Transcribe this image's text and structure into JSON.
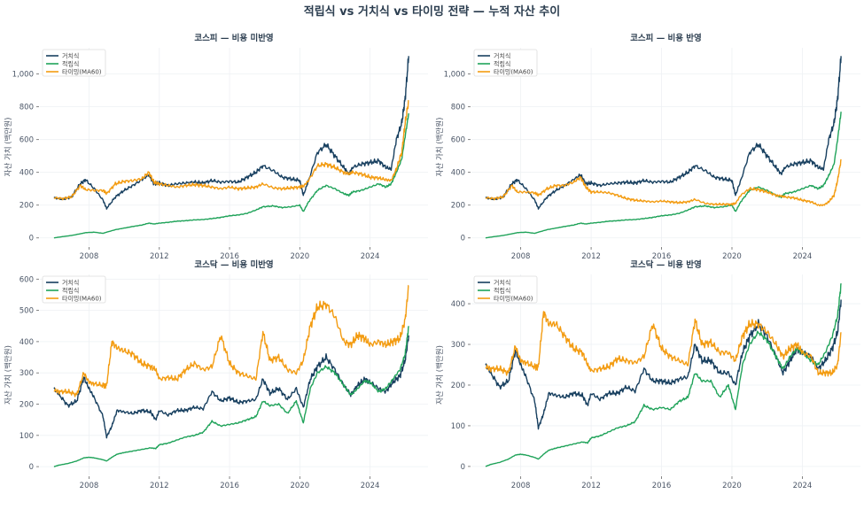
{
  "suptitle": "적립식 vs 거치식 vs 타이밍 전략 — 누적 자산 추이",
  "colors": {
    "lump": "#173f5f",
    "dca": "#20a35a",
    "timing": "#f39c12"
  },
  "chart_data": [
    {
      "type": "line",
      "title": "코스피 — 비용 미반영",
      "xlabel": "",
      "ylabel": "자산 가치 (백만원)",
      "xlim": [
        2005.2,
        2027.3
      ],
      "ylim": [
        -50,
        1160
      ],
      "xticks": [
        2008,
        2012,
        2016,
        2020,
        2024
      ],
      "yticks": [
        0,
        200,
        400,
        600,
        800,
        1000
      ],
      "ytick_labels": [
        "0",
        "200",
        "400",
        "600",
        "800",
        "1,000"
      ],
      "legend": [
        "거치식",
        "적립식",
        "타이밍(MA60)"
      ],
      "legend_position": "top-left",
      "grid": true,
      "x": [
        2006.0,
        2006.5,
        2007.0,
        2007.5,
        2007.8,
        2008.3,
        2008.8,
        2009.0,
        2009.5,
        2010.0,
        2010.5,
        2011.0,
        2011.4,
        2011.7,
        2012.0,
        2012.5,
        2013.0,
        2013.5,
        2014.0,
        2014.5,
        2015.0,
        2015.5,
        2016.0,
        2016.5,
        2017.0,
        2017.5,
        2017.9,
        2018.5,
        2019.0,
        2019.5,
        2020.0,
        2020.2,
        2020.5,
        2021.0,
        2021.5,
        2022.0,
        2022.5,
        2022.8,
        2023.0,
        2023.5,
        2024.0,
        2024.5,
        2024.9,
        2025.2,
        2025.5,
        2025.8,
        2026.0,
        2026.2
      ],
      "series": [
        {
          "name": "거치식",
          "values": [
            245,
            235,
            250,
            330,
            355,
            300,
            230,
            180,
            250,
            290,
            320,
            355,
            385,
            330,
            335,
            320,
            330,
            335,
            340,
            335,
            350,
            340,
            345,
            340,
            370,
            400,
            440,
            410,
            370,
            360,
            350,
            260,
            350,
            520,
            570,
            500,
            430,
            390,
            430,
            450,
            460,
            470,
            430,
            420,
            600,
            700,
            850,
            1110
          ]
        },
        {
          "name": "적립식",
          "values": [
            0,
            8,
            15,
            25,
            32,
            35,
            28,
            35,
            50,
            60,
            70,
            78,
            90,
            85,
            90,
            95,
            102,
            105,
            110,
            112,
            118,
            125,
            135,
            140,
            150,
            170,
            190,
            195,
            185,
            190,
            200,
            160,
            220,
            290,
            320,
            300,
            270,
            260,
            280,
            290,
            310,
            330,
            310,
            330,
            400,
            480,
            620,
            760
          ]
        },
        {
          "name": "타이밍(MA60)",
          "values": [
            245,
            240,
            250,
            320,
            295,
            290,
            290,
            270,
            330,
            345,
            350,
            360,
            400,
            340,
            330,
            320,
            310,
            320,
            325,
            320,
            310,
            300,
            310,
            300,
            305,
            310,
            330,
            305,
            300,
            305,
            310,
            315,
            350,
            440,
            450,
            430,
            400,
            390,
            400,
            390,
            370,
            365,
            355,
            350,
            420,
            520,
            700,
            840
          ]
        }
      ]
    },
    {
      "type": "line",
      "title": "코스피 — 비용 반영",
      "xlabel": "",
      "ylabel": "자산 가치 (백만원)",
      "xlim": [
        2005.2,
        2027.3
      ],
      "ylim": [
        -50,
        1160
      ],
      "xticks": [
        2008,
        2012,
        2016,
        2020,
        2024
      ],
      "yticks": [
        0,
        200,
        400,
        600,
        800,
        1000
      ],
      "ytick_labels": [
        "0",
        "200",
        "400",
        "600",
        "800",
        "1,000"
      ],
      "legend": [
        "거치식",
        "적립식",
        "타이밍(MA60)"
      ],
      "legend_position": "top-left",
      "grid": true,
      "x": [
        2006.0,
        2006.5,
        2007.0,
        2007.5,
        2007.8,
        2008.3,
        2008.8,
        2009.0,
        2009.5,
        2010.0,
        2010.5,
        2011.0,
        2011.4,
        2011.7,
        2012.0,
        2012.5,
        2013.0,
        2013.5,
        2014.0,
        2014.5,
        2015.0,
        2015.5,
        2016.0,
        2016.5,
        2017.0,
        2017.5,
        2017.9,
        2018.5,
        2019.0,
        2019.5,
        2020.0,
        2020.2,
        2020.5,
        2021.0,
        2021.5,
        2022.0,
        2022.5,
        2022.8,
        2023.0,
        2023.5,
        2024.0,
        2024.5,
        2024.9,
        2025.2,
        2025.5,
        2025.8,
        2026.0,
        2026.2
      ],
      "series": [
        {
          "name": "거치식",
          "values": [
            245,
            235,
            250,
            330,
            355,
            300,
            230,
            180,
            250,
            290,
            320,
            355,
            385,
            330,
            335,
            320,
            330,
            335,
            340,
            335,
            350,
            340,
            345,
            340,
            370,
            400,
            440,
            410,
            370,
            360,
            350,
            260,
            350,
            520,
            570,
            500,
            430,
            390,
            430,
            450,
            460,
            470,
            430,
            420,
            600,
            700,
            850,
            1110
          ]
        },
        {
          "name": "적립식",
          "values": [
            0,
            8,
            15,
            25,
            32,
            35,
            28,
            35,
            50,
            60,
            70,
            78,
            90,
            85,
            90,
            95,
            102,
            105,
            110,
            112,
            118,
            125,
            135,
            140,
            150,
            170,
            190,
            195,
            185,
            190,
            200,
            160,
            220,
            290,
            310,
            290,
            260,
            250,
            270,
            280,
            300,
            320,
            300,
            320,
            380,
            450,
            600,
            770
          ]
        },
        {
          "name": "타이밍(MA60)",
          "values": [
            245,
            240,
            250,
            320,
            280,
            280,
            275,
            260,
            300,
            320,
            320,
            340,
            370,
            310,
            280,
            280,
            275,
            260,
            240,
            230,
            225,
            220,
            225,
            220,
            215,
            220,
            235,
            210,
            205,
            205,
            205,
            210,
            260,
            300,
            295,
            280,
            260,
            255,
            250,
            245,
            230,
            220,
            200,
            200,
            220,
            260,
            350,
            480
          ]
        }
      ]
    },
    {
      "type": "line",
      "title": "코스닥 — 비용 미반영",
      "xlabel": "",
      "ylabel": "자산 가치 (백만원)",
      "xlim": [
        2005.2,
        2027.3
      ],
      "ylim": [
        -28,
        615
      ],
      "xticks": [
        2008,
        2012,
        2016,
        2020,
        2024
      ],
      "yticks": [
        0,
        100,
        200,
        300,
        400,
        500,
        600
      ],
      "ytick_labels": [
        "0",
        "100",
        "200",
        "300",
        "400",
        "500",
        "600"
      ],
      "legend": [
        "거치식",
        "적립식",
        "타이밍(MA60)"
      ],
      "legend_position": "top-left",
      "grid": true,
      "x": [
        2006.0,
        2006.3,
        2006.8,
        2007.3,
        2007.7,
        2008.0,
        2008.3,
        2008.8,
        2009.0,
        2009.3,
        2009.6,
        2010.0,
        2010.5,
        2011.0,
        2011.5,
        2011.8,
        2012.0,
        2012.5,
        2013.0,
        2013.5,
        2014.0,
        2014.5,
        2015.0,
        2015.5,
        2016.0,
        2016.5,
        2017.0,
        2017.5,
        2017.9,
        2018.3,
        2018.8,
        2019.3,
        2019.8,
        2020.2,
        2020.6,
        2021.0,
        2021.5,
        2022.0,
        2022.5,
        2022.9,
        2023.3,
        2023.7,
        2024.0,
        2024.5,
        2024.9,
        2025.3,
        2025.7,
        2026.0,
        2026.2
      ],
      "series": [
        {
          "name": "거치식",
          "values": [
            250,
            230,
            195,
            210,
            285,
            250,
            220,
            160,
            95,
            130,
            180,
            175,
            170,
            180,
            175,
            150,
            180,
            165,
            180,
            180,
            190,
            185,
            240,
            210,
            220,
            205,
            210,
            215,
            280,
            235,
            250,
            215,
            250,
            190,
            280,
            320,
            350,
            310,
            260,
            230,
            260,
            280,
            270,
            250,
            240,
            270,
            290,
            340,
            420
          ]
        },
        {
          "name": "적립식",
          "values": [
            0,
            5,
            10,
            18,
            28,
            30,
            28,
            22,
            18,
            30,
            40,
            45,
            50,
            55,
            60,
            58,
            70,
            75,
            85,
            95,
            100,
            110,
            145,
            130,
            135,
            140,
            150,
            160,
            210,
            195,
            200,
            170,
            210,
            140,
            250,
            300,
            320,
            300,
            260,
            230,
            250,
            275,
            270,
            240,
            250,
            280,
            310,
            360,
            450
          ]
        },
        {
          "name": "타이밍(MA60)",
          "values": [
            245,
            240,
            240,
            230,
            300,
            270,
            265,
            260,
            260,
            400,
            380,
            370,
            360,
            330,
            320,
            310,
            280,
            285,
            280,
            310,
            330,
            310,
            320,
            420,
            330,
            300,
            290,
            280,
            430,
            340,
            350,
            310,
            300,
            340,
            450,
            510,
            520,
            480,
            400,
            390,
            420,
            410,
            390,
            400,
            390,
            400,
            410,
            470,
            580
          ]
        }
      ]
    },
    {
      "type": "line",
      "title": "코스닥 — 비용 반영",
      "xlabel": "",
      "ylabel": "자산 가치 (백만원)",
      "xlim": [
        2005.2,
        2027.3
      ],
      "ylim": [
        -22,
        472
      ],
      "xticks": [
        2008,
        2012,
        2016,
        2020,
        2024
      ],
      "yticks": [
        0,
        100,
        200,
        300,
        400
      ],
      "ytick_labels": [
        "0",
        "100",
        "200",
        "300",
        "400"
      ],
      "legend": [
        "거치식",
        "적립식",
        "타이밍(MA60)"
      ],
      "legend_position": "top-left",
      "grid": true,
      "x": [
        2006.0,
        2006.3,
        2006.8,
        2007.3,
        2007.7,
        2008.0,
        2008.3,
        2008.8,
        2009.0,
        2009.3,
        2009.6,
        2010.0,
        2010.5,
        2011.0,
        2011.5,
        2011.8,
        2012.0,
        2012.5,
        2013.0,
        2013.5,
        2014.0,
        2014.5,
        2015.0,
        2015.5,
        2016.0,
        2016.5,
        2017.0,
        2017.5,
        2017.9,
        2018.3,
        2018.8,
        2019.3,
        2019.8,
        2020.2,
        2020.6,
        2021.0,
        2021.5,
        2022.0,
        2022.5,
        2022.9,
        2023.3,
        2023.7,
        2024.0,
        2024.5,
        2024.9,
        2025.3,
        2025.7,
        2026.0,
        2026.2
      ],
      "series": [
        {
          "name": "거치식",
          "values": [
            250,
            230,
            195,
            210,
            285,
            250,
            220,
            160,
            95,
            130,
            180,
            175,
            170,
            180,
            175,
            150,
            180,
            165,
            180,
            180,
            195,
            185,
            240,
            210,
            210,
            205,
            215,
            220,
            300,
            260,
            260,
            230,
            230,
            200,
            280,
            320,
            350,
            320,
            270,
            230,
            260,
            290,
            280,
            270,
            240,
            260,
            290,
            330,
            410
          ]
        },
        {
          "name": "적립식",
          "values": [
            0,
            5,
            10,
            18,
            28,
            30,
            28,
            22,
            18,
            30,
            40,
            45,
            50,
            55,
            60,
            58,
            70,
            75,
            85,
            95,
            100,
            110,
            150,
            140,
            145,
            140,
            160,
            170,
            230,
            210,
            210,
            170,
            200,
            140,
            250,
            300,
            330,
            310,
            270,
            240,
            270,
            290,
            280,
            260,
            250,
            280,
            320,
            370,
            450
          ]
        },
        {
          "name": "타이밍(MA60)",
          "values": [
            245,
            240,
            240,
            230,
            295,
            260,
            255,
            245,
            245,
            380,
            350,
            350,
            320,
            290,
            280,
            250,
            235,
            240,
            245,
            265,
            260,
            255,
            270,
            350,
            290,
            270,
            260,
            250,
            360,
            300,
            305,
            280,
            280,
            260,
            320,
            350,
            350,
            330,
            300,
            270,
            290,
            300,
            280,
            270,
            230,
            230,
            230,
            250,
            330
          ]
        }
      ]
    }
  ]
}
